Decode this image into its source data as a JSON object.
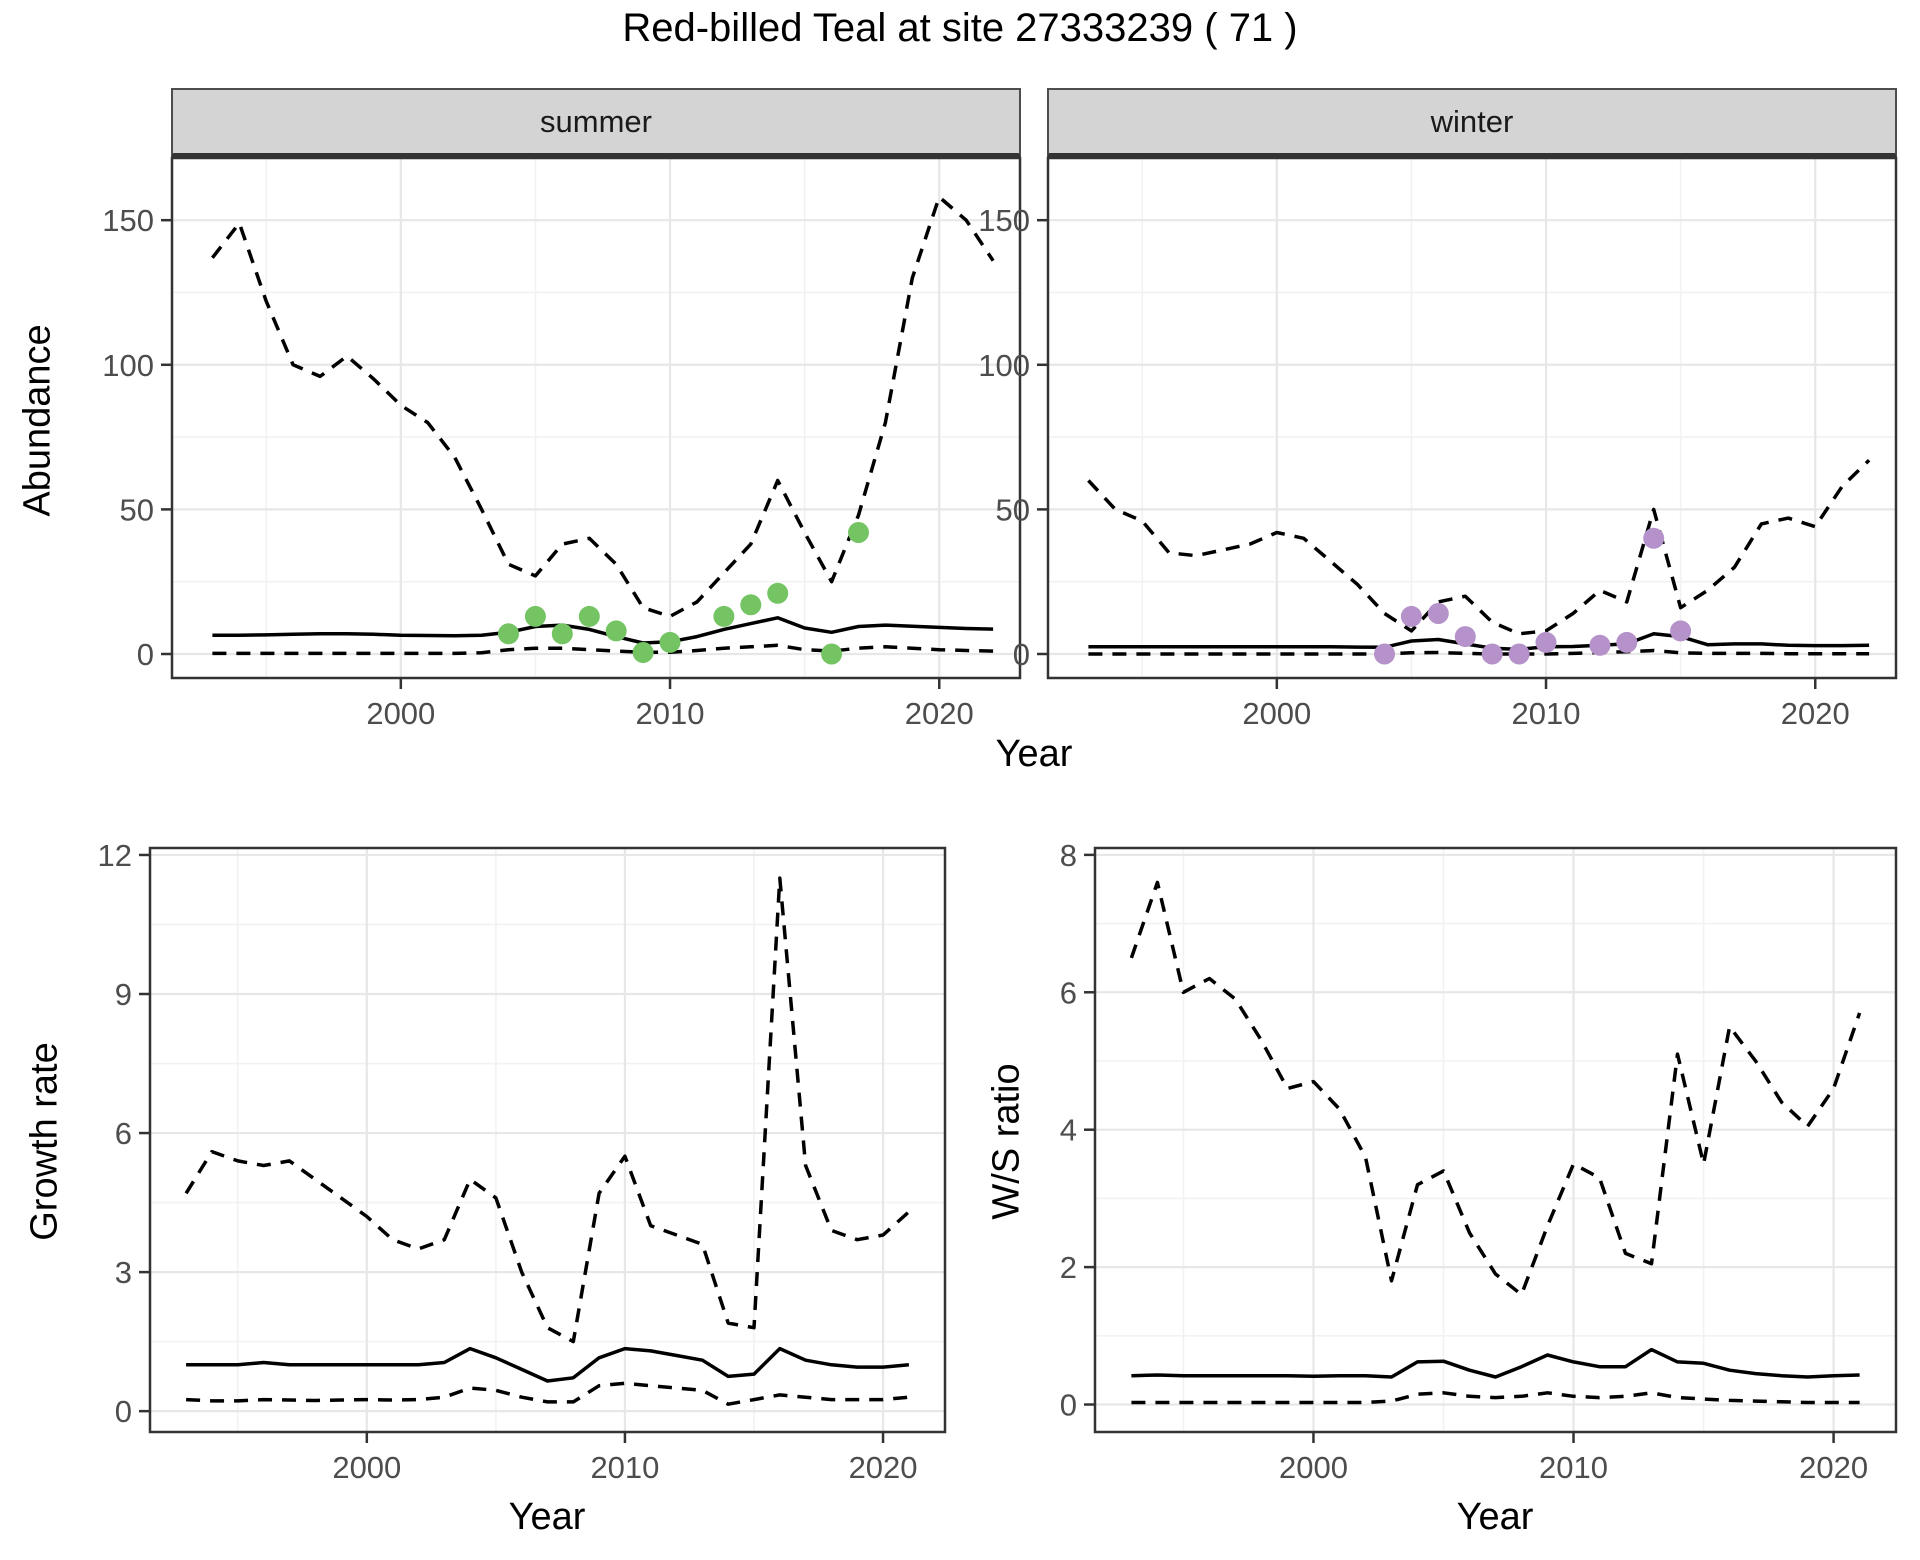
{
  "title": "Red-billed Teal at site 27333239 ( 71 )",
  "facets": {
    "summer": "summer",
    "winter": "winter"
  },
  "axis_titles": {
    "abundance": "Abundance",
    "year": "Year",
    "growth_rate": "Growth rate",
    "ws_ratio": "W/S ratio"
  },
  "colors": {
    "summer_points": "#74c464",
    "winter_points": "#b592c9",
    "line": "#000000",
    "grid_major": "#e7e7e7",
    "grid_minor": "#f2f2f2",
    "panel_border": "#333333",
    "tick_label": "#4d4d4d",
    "strip_fill": "#d4d4d4"
  },
  "chart_data": [
    {
      "id": "abundance-summer",
      "type": "line",
      "facet": "summer",
      "xlabel": "Year",
      "ylabel": "Abundance",
      "xlim": [
        1991.5,
        2023.0
      ],
      "ylim": [
        -8.3,
        171.5
      ],
      "xticks": [
        2000,
        2010,
        2020
      ],
      "xminor": [
        1995,
        2005,
        2015
      ],
      "yticks": [
        0,
        50,
        100,
        150
      ],
      "yminor": [
        25,
        75,
        125
      ],
      "x": [
        1993,
        1994,
        1995,
        1996,
        1997,
        1998,
        1999,
        2000,
        2001,
        2002,
        2003,
        2004,
        2005,
        2006,
        2007,
        2008,
        2009,
        2010,
        2011,
        2012,
        2013,
        2014,
        2015,
        2016,
        2017,
        2018,
        2019,
        2020,
        2021,
        2022
      ],
      "series": [
        {
          "name": "upper-95ci",
          "style": "dashed",
          "values": [
            137,
            149,
            122,
            100,
            96,
            103,
            95,
            86,
            80,
            68,
            50,
            31,
            27,
            38,
            40,
            31,
            16,
            13,
            18,
            28,
            38,
            60,
            42,
            25,
            48,
            80,
            130,
            158,
            150,
            136
          ]
        },
        {
          "name": "median",
          "style": "solid",
          "values": [
            6.5,
            6.5,
            6.6,
            6.8,
            7.0,
            7.0,
            6.8,
            6.5,
            6.4,
            6.3,
            6.5,
            7.5,
            9.5,
            10.0,
            8.5,
            6.0,
            3.8,
            4.2,
            6.0,
            8.5,
            10.5,
            12.5,
            9.0,
            7.5,
            9.5,
            10.0,
            9.6,
            9.2,
            8.8,
            8.6
          ]
        },
        {
          "name": "lower-95ci",
          "style": "dashed",
          "values": [
            0.2,
            0.2,
            0.2,
            0.2,
            0.2,
            0.2,
            0.2,
            0.2,
            0.2,
            0.2,
            0.4,
            1.5,
            2.0,
            2.0,
            1.5,
            1.0,
            0.6,
            0.6,
            1.2,
            2.0,
            2.5,
            3.0,
            1.5,
            1.0,
            2.0,
            2.5,
            2.0,
            1.5,
            1.2,
            1.0
          ]
        }
      ],
      "points": {
        "name": "observed-count-summer",
        "color": "#74c464",
        "x": [
          2004,
          2005,
          2006,
          2007,
          2008,
          2009,
          2010,
          2012,
          2013,
          2014,
          2016,
          2017
        ],
        "y": [
          7,
          13,
          7,
          13,
          8,
          0.5,
          4,
          13,
          17,
          21,
          0,
          42
        ]
      }
    },
    {
      "id": "abundance-winter",
      "type": "line",
      "facet": "winter",
      "xlabel": "Year",
      "ylabel": "Abundance",
      "xlim": [
        1991.5,
        2023.0
      ],
      "ylim": [
        -8.3,
        171.5
      ],
      "xticks": [
        2000,
        2010,
        2020
      ],
      "xminor": [
        1995,
        2005,
        2015
      ],
      "yticks": [
        0,
        50,
        100,
        150
      ],
      "yminor": [
        25,
        75,
        125
      ],
      "x": [
        1993,
        1994,
        1995,
        1996,
        1997,
        1998,
        1999,
        2000,
        2001,
        2002,
        2003,
        2004,
        2005,
        2006,
        2007,
        2008,
        2009,
        2010,
        2011,
        2012,
        2013,
        2014,
        2015,
        2016,
        2017,
        2018,
        2019,
        2020,
        2021,
        2022
      ],
      "series": [
        {
          "name": "upper-95ci",
          "style": "dashed",
          "values": [
            60,
            50,
            46,
            35,
            34,
            36,
            38,
            42,
            40,
            32,
            24,
            14,
            8,
            18,
            20,
            11,
            7,
            8,
            14,
            22,
            18,
            50,
            16,
            22,
            30,
            45,
            47,
            44,
            58,
            67
          ]
        },
        {
          "name": "median",
          "style": "solid",
          "values": [
            2.5,
            2.5,
            2.5,
            2.5,
            2.5,
            2.5,
            2.5,
            2.5,
            2.5,
            2.5,
            2.4,
            2.3,
            4.5,
            5.0,
            3.5,
            2.0,
            1.6,
            2.5,
            2.6,
            3.0,
            3.5,
            7.0,
            6.0,
            3.2,
            3.5,
            3.5,
            3.0,
            2.9,
            2.9,
            3.0
          ]
        },
        {
          "name": "lower-95ci",
          "style": "dashed",
          "values": [
            0,
            0,
            0,
            0,
            0,
            0,
            0,
            0,
            0,
            0,
            0,
            0,
            0.4,
            0.5,
            0.2,
            0,
            0,
            0,
            0.2,
            0.5,
            0.8,
            1.2,
            0.4,
            0.2,
            0.2,
            0.2,
            0.1,
            0.1,
            0.1,
            0.1
          ]
        }
      ],
      "points": {
        "name": "observed-count-winter",
        "color": "#b592c9",
        "x": [
          2004,
          2005,
          2006,
          2007,
          2008,
          2009,
          2010,
          2012,
          2013,
          2014,
          2015
        ],
        "y": [
          0,
          13,
          14,
          6,
          0,
          0,
          4,
          3,
          4,
          40,
          8
        ]
      }
    },
    {
      "id": "growth-rate",
      "type": "line",
      "xlabel": "Year",
      "ylabel": "Growth rate",
      "xlim": [
        1991.6,
        2022.4
      ],
      "ylim": [
        -0.45,
        12.15
      ],
      "xticks": [
        2000,
        2010,
        2020
      ],
      "xminor": [
        1995,
        2005,
        2015
      ],
      "yticks": [
        0,
        3,
        6,
        9,
        12
      ],
      "yminor": [
        1.5,
        4.5,
        7.5,
        10.5
      ],
      "x": [
        1993,
        1994,
        1995,
        1996,
        1997,
        1998,
        1999,
        2000,
        2001,
        2002,
        2003,
        2004,
        2005,
        2006,
        2007,
        2008,
        2009,
        2010,
        2011,
        2012,
        2013,
        2014,
        2015,
        2016,
        2017,
        2018,
        2019,
        2020,
        2021
      ],
      "series": [
        {
          "name": "upper-95ci",
          "style": "dashed",
          "values": [
            4.7,
            5.6,
            5.4,
            5.3,
            5.4,
            5.0,
            4.6,
            4.2,
            3.7,
            3.5,
            3.7,
            5.0,
            4.6,
            3.0,
            1.8,
            1.5,
            4.7,
            5.5,
            4.0,
            3.8,
            3.6,
            1.9,
            1.8,
            11.5,
            5.3,
            3.9,
            3.7,
            3.8,
            4.3
          ]
        },
        {
          "name": "median",
          "style": "solid",
          "values": [
            1.0,
            1.0,
            1.0,
            1.05,
            1.0,
            1.0,
            1.0,
            1.0,
            1.0,
            1.0,
            1.05,
            1.35,
            1.15,
            0.9,
            0.65,
            0.72,
            1.15,
            1.35,
            1.3,
            1.2,
            1.1,
            0.75,
            0.8,
            1.35,
            1.1,
            1.0,
            0.95,
            0.95,
            1.0
          ]
        },
        {
          "name": "lower-95ci",
          "style": "dashed",
          "values": [
            0.25,
            0.22,
            0.22,
            0.25,
            0.24,
            0.23,
            0.24,
            0.25,
            0.24,
            0.25,
            0.3,
            0.5,
            0.45,
            0.3,
            0.2,
            0.2,
            0.55,
            0.6,
            0.55,
            0.5,
            0.45,
            0.15,
            0.25,
            0.35,
            0.3,
            0.25,
            0.25,
            0.25,
            0.3
          ]
        }
      ]
    },
    {
      "id": "ws-ratio",
      "type": "line",
      "xlabel": "Year",
      "ylabel": "W/S ratio",
      "xlim": [
        1991.6,
        2022.4
      ],
      "ylim": [
        -0.4,
        8.1
      ],
      "xticks": [
        2000,
        2010,
        2020
      ],
      "xminor": [
        1995,
        2005,
        2015
      ],
      "yticks": [
        0,
        2,
        4,
        6,
        8
      ],
      "yminor": [
        1,
        3,
        5,
        7
      ],
      "x": [
        1993,
        1994,
        1995,
        1996,
        1997,
        1998,
        1999,
        2000,
        2001,
        2002,
        2003,
        2004,
        2005,
        2006,
        2007,
        2008,
        2009,
        2010,
        2011,
        2012,
        2013,
        2014,
        2015,
        2016,
        2017,
        2018,
        2019,
        2020,
        2021
      ],
      "series": [
        {
          "name": "upper-95ci",
          "style": "dashed",
          "values": [
            6.5,
            7.6,
            6.0,
            6.2,
            5.9,
            5.3,
            4.6,
            4.7,
            4.3,
            3.6,
            1.8,
            3.2,
            3.4,
            2.5,
            1.9,
            1.6,
            2.6,
            3.5,
            3.3,
            2.2,
            2.05,
            5.1,
            3.5,
            5.5,
            5.0,
            4.4,
            4.05,
            4.6,
            5.7
          ]
        },
        {
          "name": "median",
          "style": "solid",
          "values": [
            0.42,
            0.43,
            0.42,
            0.42,
            0.42,
            0.42,
            0.42,
            0.41,
            0.42,
            0.42,
            0.4,
            0.62,
            0.63,
            0.5,
            0.4,
            0.55,
            0.72,
            0.62,
            0.55,
            0.55,
            0.8,
            0.62,
            0.6,
            0.5,
            0.45,
            0.42,
            0.4,
            0.42,
            0.43
          ]
        },
        {
          "name": "lower-95ci",
          "style": "dashed",
          "values": [
            0.03,
            0.03,
            0.03,
            0.03,
            0.03,
            0.03,
            0.03,
            0.03,
            0.03,
            0.03,
            0.05,
            0.15,
            0.17,
            0.12,
            0.1,
            0.12,
            0.17,
            0.12,
            0.1,
            0.12,
            0.17,
            0.1,
            0.08,
            0.06,
            0.05,
            0.04,
            0.03,
            0.03,
            0.03
          ]
        }
      ]
    }
  ]
}
